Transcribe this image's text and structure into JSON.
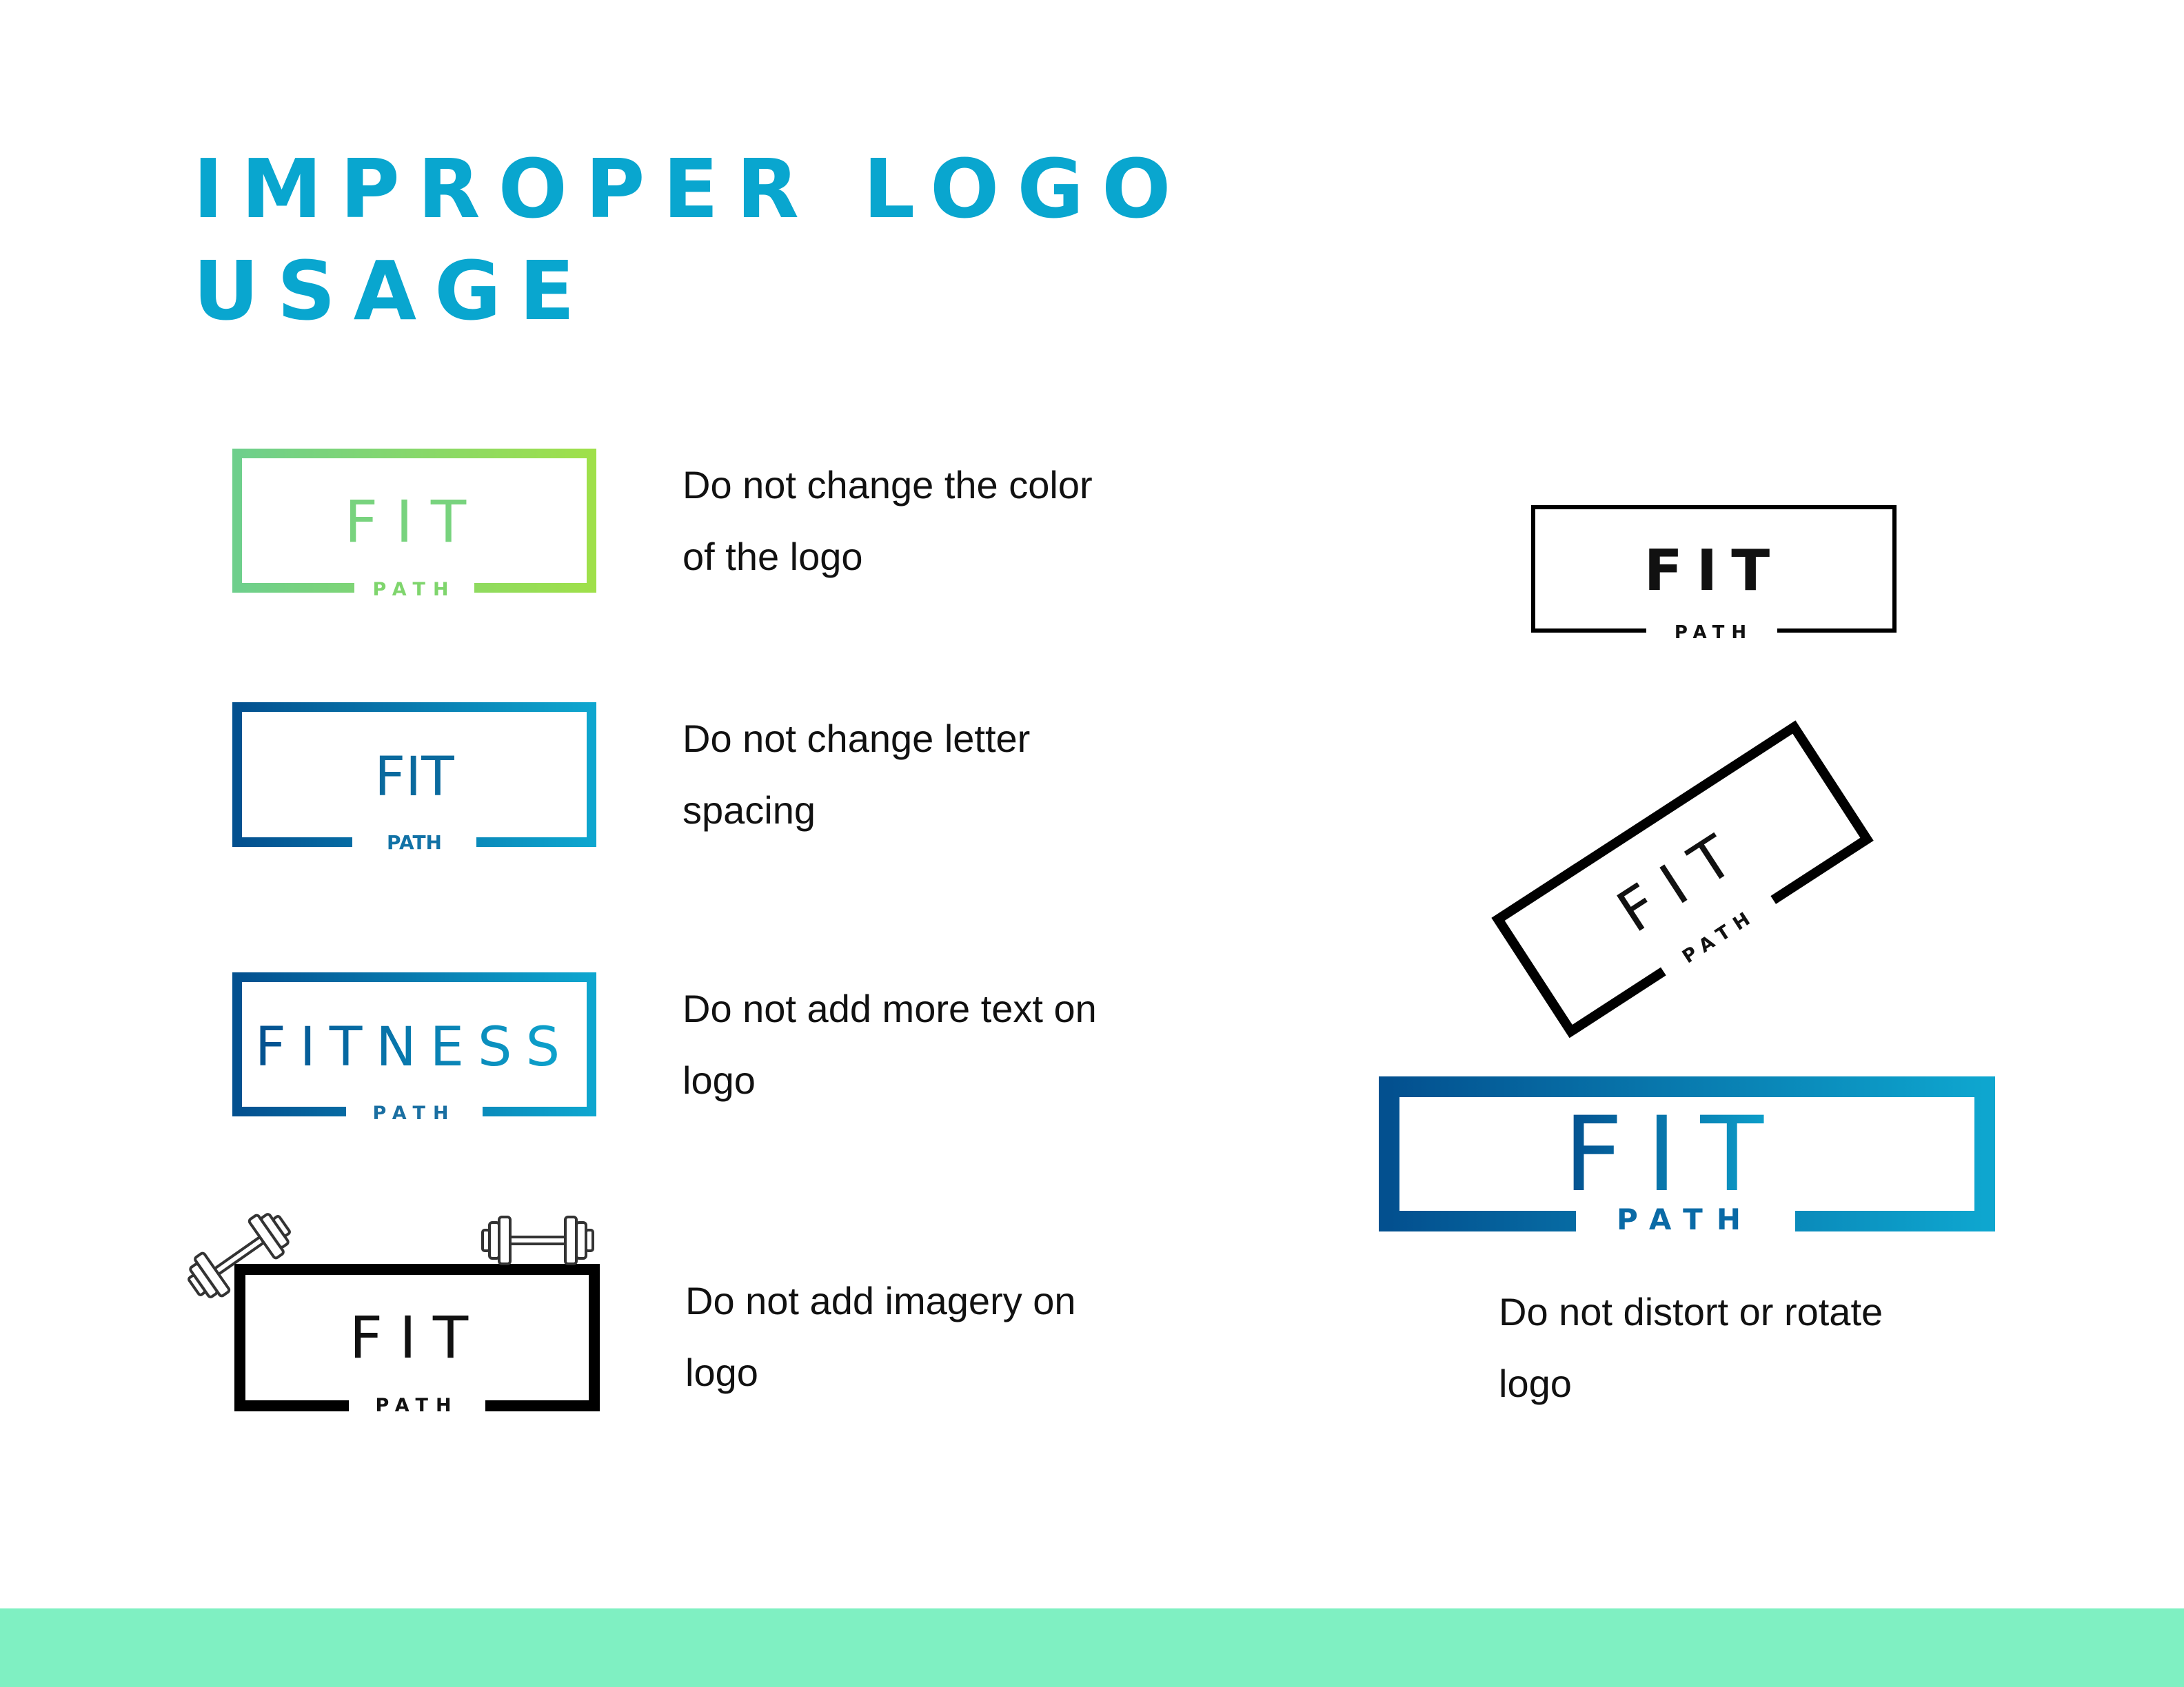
{
  "page": {
    "title": "IMPROPER LOGO USAGE",
    "footer_color": "#7ff0c2",
    "title_color": "#09a6cf"
  },
  "logo": {
    "word": "FIT",
    "sub": "PATH",
    "alt_word": "FITNESS"
  },
  "examples": [
    {
      "caption": "Do not change the color of the logo"
    },
    {
      "caption": "Do not  change letter spacing"
    },
    {
      "caption": "Do not add more text on logo"
    },
    {
      "caption": "Do not add imagery on logo"
    },
    {
      "caption": "Do not distort or rotate logo"
    }
  ],
  "colors": {
    "green_start": "#6ecf8c",
    "green_end": "#9fe04a",
    "blue_start": "#03508f",
    "blue_end": "#0ea6cf",
    "black": "#000000"
  },
  "icons": [
    "dumbbell-icon",
    "dumbbell-icon"
  ]
}
